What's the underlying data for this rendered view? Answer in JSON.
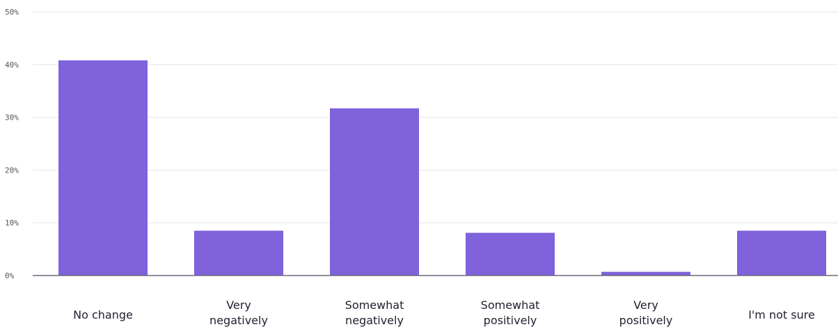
{
  "chart_data": {
    "type": "bar",
    "categories": [
      [
        "No change"
      ],
      [
        "Very",
        "negatively"
      ],
      [
        "Somewhat",
        "negatively"
      ],
      [
        "Somewhat",
        "positively"
      ],
      [
        "Very",
        "positively"
      ],
      [
        "I'm not sure"
      ]
    ],
    "values": [
      40.8,
      8.5,
      31.7,
      8.1,
      0.7,
      8.5
    ],
    "ylim": [
      0,
      50
    ],
    "yticks": [
      0,
      10,
      20,
      30,
      40,
      50
    ],
    "ytick_labels": [
      "0%",
      "10%",
      "20%",
      "30%",
      "40%",
      "50%"
    ],
    "title": "",
    "xlabel": "",
    "ylabel": "",
    "grid": true,
    "bar_color": "#7f62dc",
    "grid_color": "#e6e6e6",
    "axis_color": "#6b6b7a"
  }
}
